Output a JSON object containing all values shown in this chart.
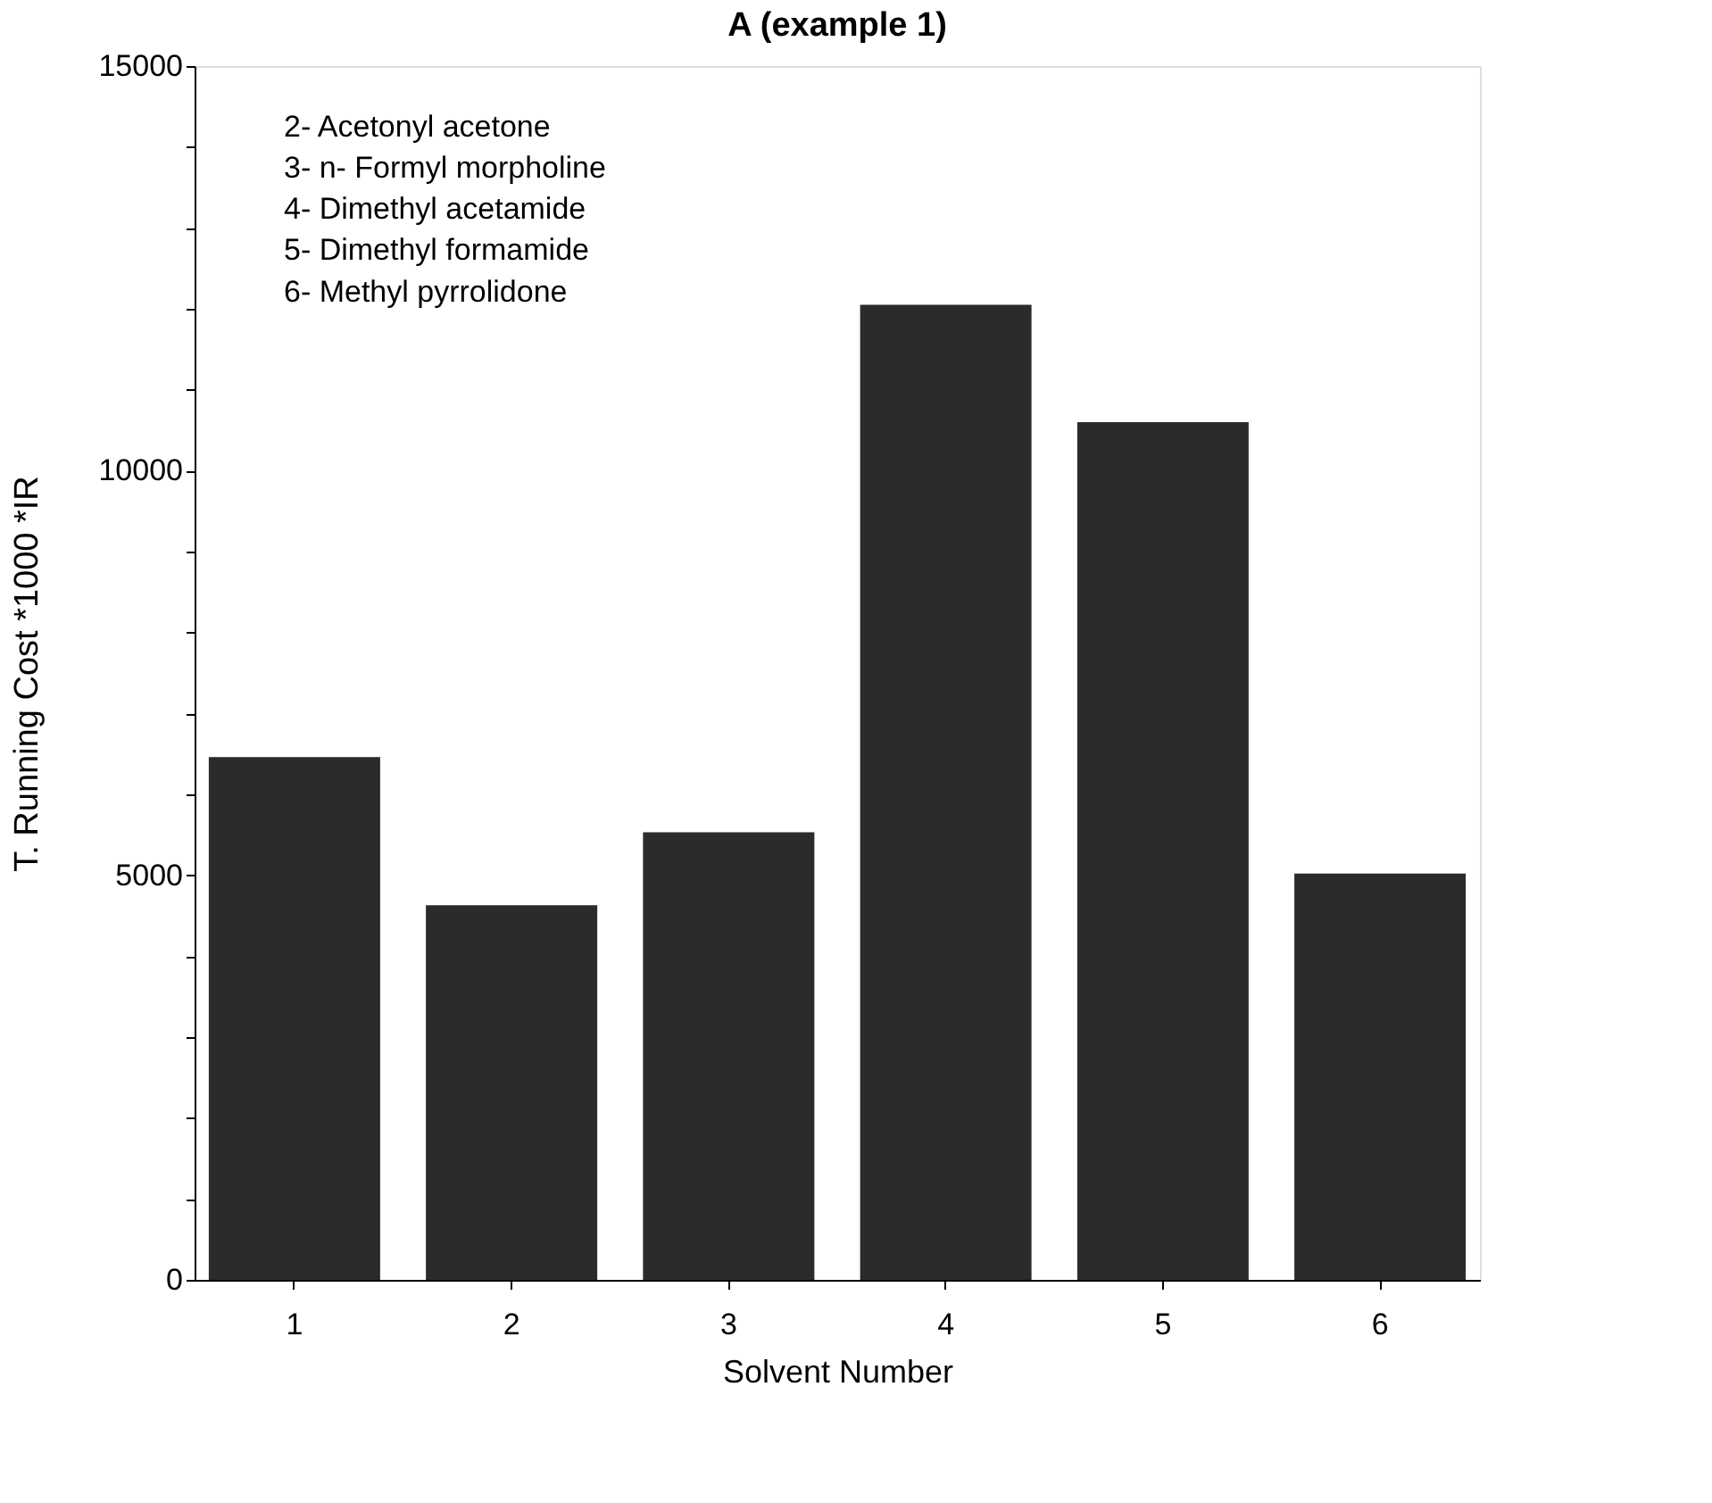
{
  "chart_data": {
    "type": "bar",
    "title": "A  (example 1)",
    "xlabel": "Solvent Number",
    "ylabel": "T. Running Cost *1000 *IR",
    "categories": [
      "1",
      "2",
      "3",
      "4",
      "5",
      "6"
    ],
    "values": [
      6460,
      4630,
      5530,
      12050,
      10600,
      5020
    ],
    "color": "#2b2b2b",
    "ylim": [
      0,
      15000
    ],
    "yticks": [
      0,
      {
        "value": 1000,
        "label": null
      },
      {
        "value": 2000,
        "label": null
      },
      {
        "value": 3000,
        "label": null
      },
      {
        "value": 4000,
        "label": null
      },
      5000,
      {
        "value": 6000,
        "label": null
      },
      {
        "value": 7000,
        "label": null
      },
      {
        "value": 8000,
        "label": null
      },
      {
        "value": 9000,
        "label": null
      },
      10000,
      {
        "value": 11000,
        "label": null
      },
      {
        "value": 12000,
        "label": null
      },
      {
        "value": 13000,
        "label": null
      },
      {
        "value": 14000,
        "label": null
      },
      15000
    ],
    "annotations": [
      "2- Acetonyl acetone",
      "3- n- Formyl morpholine",
      "4- Dimethyl acetamide",
      "5- Dimethyl formamide",
      "6- Methyl pyrrolidone"
    ],
    "grid": false
  }
}
